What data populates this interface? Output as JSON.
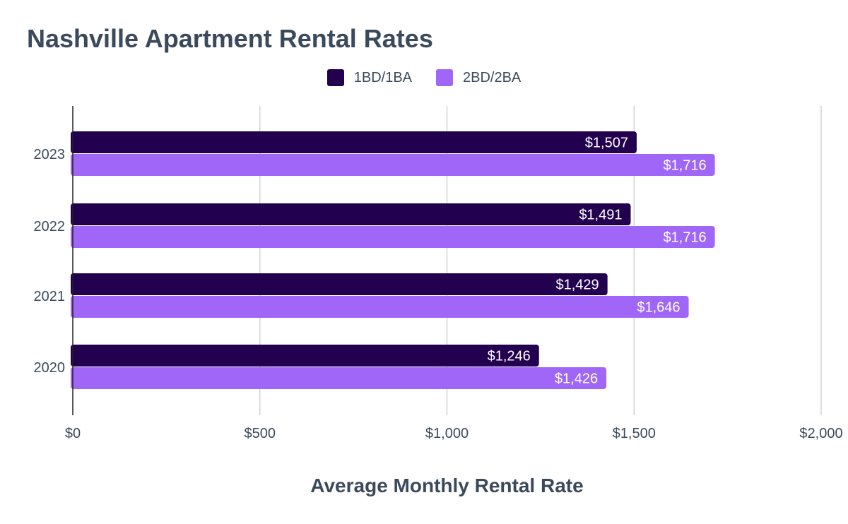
{
  "chart_data": {
    "type": "bar",
    "orientation": "horizontal",
    "title": "Nashville Apartment Rental Rates",
    "xlabel": "Average Monthly Rental Rate",
    "ylabel": "",
    "categories": [
      "2023",
      "2022",
      "2021",
      "2020"
    ],
    "series": [
      {
        "name": "1BD/1BA",
        "color": "#22004f",
        "values": [
          1507,
          1491,
          1429,
          1246
        ],
        "labels": [
          "$1,507",
          "$1,491",
          "$1,429",
          "$1,246"
        ]
      },
      {
        "name": "2BD/2BA",
        "color": "#a066f7",
        "values": [
          1716,
          1716,
          1646,
          1426
        ],
        "labels": [
          "$1,716",
          "$1,716",
          "$1,646",
          "$1,426"
        ]
      }
    ],
    "xlim": [
      0,
      2000
    ],
    "ticks": [
      {
        "value": 0,
        "label": "$0"
      },
      {
        "value": 500,
        "label": "$500"
      },
      {
        "value": 1000,
        "label": "$1,000"
      },
      {
        "value": 1500,
        "label": "$1,500"
      },
      {
        "value": 2000,
        "label": "$2,000"
      }
    ],
    "grid": true,
    "legend_position": "top"
  }
}
